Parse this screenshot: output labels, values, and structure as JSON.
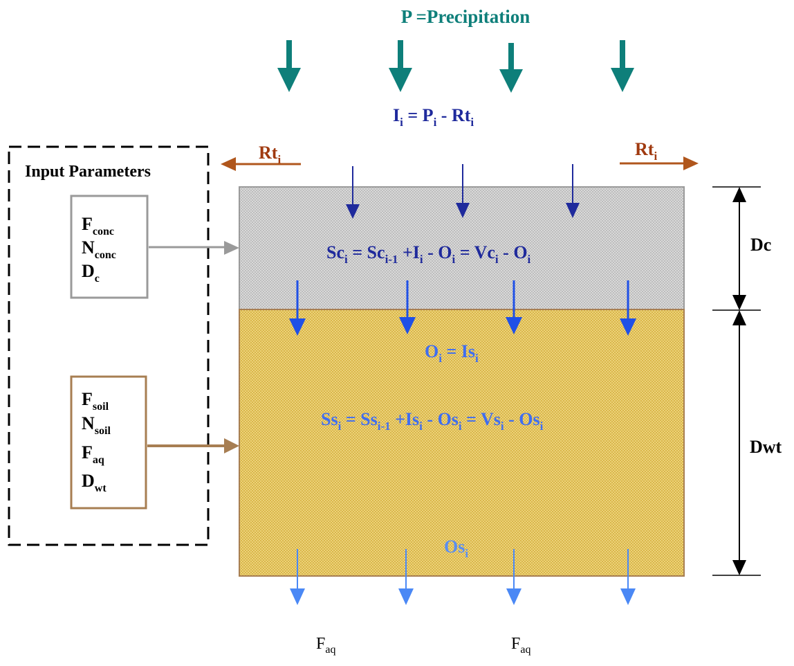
{
  "title": {
    "text": "P =Precipitation"
  },
  "infiltration": {
    "I": "I",
    "i1": "i",
    "eq": " = P",
    "i2": "i",
    "minus": " - Rt",
    "i3": "i"
  },
  "runoff_left": {
    "base": "Rt",
    "sub": "i"
  },
  "runoff_right": {
    "base": "Rt",
    "sub": "i"
  },
  "input_parameters": {
    "title": "Input Parameters",
    "concrete_box": [
      {
        "base": "F",
        "sub": "conc"
      },
      {
        "base": "N",
        "sub": "conc"
      },
      {
        "base": "D",
        "sub": "c"
      }
    ],
    "soil_box": [
      {
        "base": "F",
        "sub": "soil"
      },
      {
        "base": "N",
        "sub": "soil"
      },
      {
        "base": "F",
        "sub": "aq"
      },
      {
        "base": "D",
        "sub": "wt"
      }
    ]
  },
  "concrete_layer": {
    "equation": {
      "a": "Sc",
      "a_sub": "i",
      "b": " = Sc",
      "b_sub": "i-1",
      "c": " +I",
      "c_sub": "i",
      "d": " - O",
      "d_sub": "i",
      "e": " = Vc",
      "e_sub": "i",
      "f": " - O",
      "f_sub": "i"
    }
  },
  "soil_layer": {
    "outflow_eq": {
      "a": "O",
      "a_sub": "i",
      "b": " = Is",
      "b_sub": "i"
    },
    "equation": {
      "a": "Ss",
      "a_sub": "i",
      "b": " = Ss",
      "b_sub": "i-1",
      "c": " +Is",
      "c_sub": "i",
      "d": " - Os",
      "d_sub": "i",
      "e": " = Vs",
      "e_sub": "i",
      "f": " - Os",
      "f_sub": "i"
    },
    "outflow_label": {
      "base": "Os",
      "sub": "i"
    }
  },
  "depth_labels": {
    "concrete": "Dc",
    "water_table": "Dwt"
  },
  "aquifer_labels": [
    {
      "base": "F",
      "sub": "aq"
    },
    {
      "base": "F",
      "sub": "aq"
    }
  ],
  "colors": {
    "precipitation": "#0e7f7a",
    "infiltration": "#1f2a9c",
    "runoff": "#b0561c",
    "outflow": "#3f6df0",
    "concrete_fill": "#d3d3d3",
    "soil_fill": "#e9c75a",
    "concrete_border": "#9a9a9a",
    "soil_border": "#a77e52"
  }
}
